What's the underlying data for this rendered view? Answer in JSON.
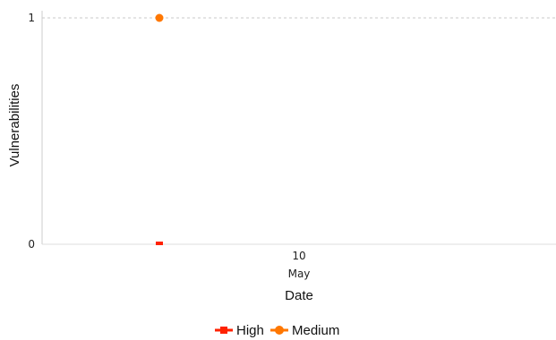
{
  "chart_data": {
    "type": "line",
    "title": "",
    "xlabel": "Date",
    "ylabel": "Vulnerabilities",
    "x": [
      "10 May"
    ],
    "x_tick": {
      "day": "10",
      "month": "May"
    },
    "ylim": [
      0,
      1
    ],
    "y_ticks": [
      "0",
      "1"
    ],
    "grid": "horizontal dashed",
    "legend_position": "bottom",
    "series": [
      {
        "name": "High",
        "values": [
          0
        ],
        "color": "#ff2200",
        "marker": "square"
      },
      {
        "name": "Medium",
        "values": [
          1
        ],
        "color": "#ff7700",
        "marker": "circle"
      }
    ]
  }
}
